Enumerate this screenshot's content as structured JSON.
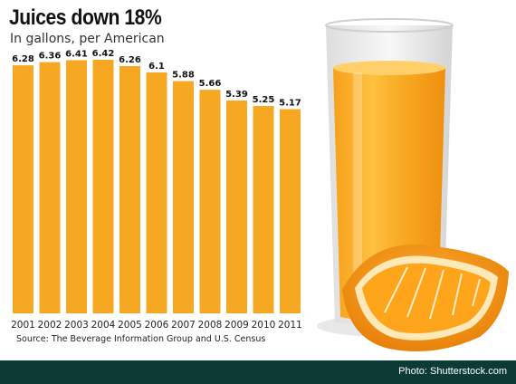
{
  "chart_data": {
    "type": "bar",
    "title": "Juices down 18%",
    "subtitle": "In gallons, per American",
    "categories": [
      "2001",
      "2002",
      "2003",
      "2004",
      "2005",
      "2006",
      "2007",
      "2008",
      "2009",
      "2010",
      "2011"
    ],
    "values": [
      6.28,
      6.36,
      6.41,
      6.42,
      6.26,
      6.1,
      5.88,
      5.66,
      5.39,
      5.25,
      5.17
    ],
    "value_labels": [
      "6.28",
      "6.36",
      "6.41",
      "6.42",
      "6.26",
      "6.1",
      "5.88",
      "5.66",
      "5.39",
      "5.25",
      "5.17"
    ],
    "ylim": [
      0,
      6.42
    ],
    "grid": false,
    "legend": "none",
    "bar_color": "#f7a823",
    "source": "Source: The Beverage Information Group and U.S. Census"
  },
  "footer": {
    "credit": "Photo: Shutterstock.com",
    "background": "#0b3b34"
  }
}
